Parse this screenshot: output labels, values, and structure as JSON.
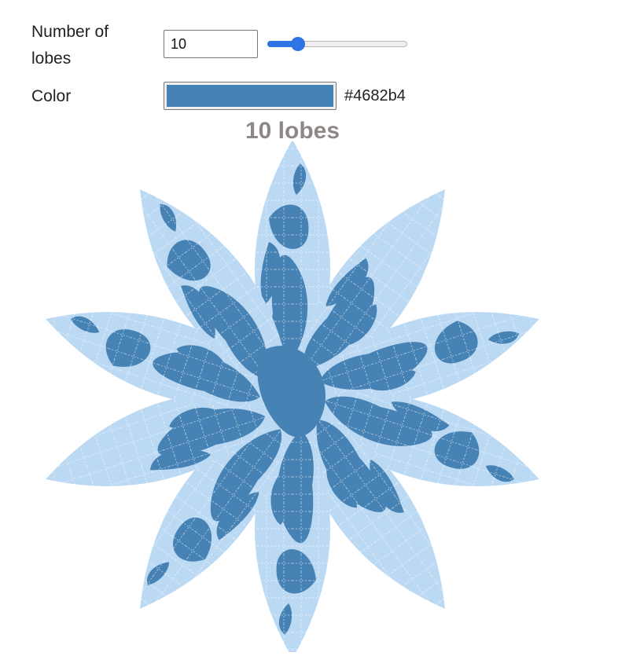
{
  "controls": {
    "lobes_label": "Number of lobes",
    "lobes_value": "10",
    "lobes_slider": {
      "value": 10,
      "min": 3,
      "max": 40
    },
    "color_label": "Color",
    "color_hex": "#4682b4"
  },
  "title": "10 lobes",
  "map": {
    "lobe_count": 10,
    "ocean_color": "#bcd9f4",
    "land_color": "#4682b4",
    "graticule_color": "#ffffff"
  }
}
